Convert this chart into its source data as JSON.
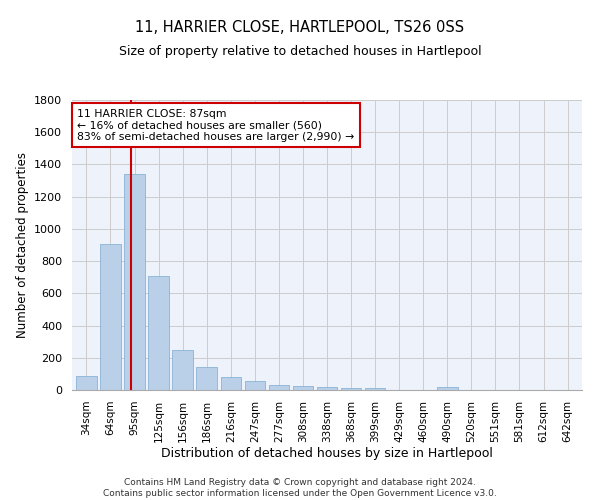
{
  "title": "11, HARRIER CLOSE, HARTLEPOOL, TS26 0SS",
  "subtitle": "Size of property relative to detached houses in Hartlepool",
  "xlabel": "Distribution of detached houses by size in Hartlepool",
  "ylabel": "Number of detached properties",
  "categories": [
    "34sqm",
    "64sqm",
    "95sqm",
    "125sqm",
    "156sqm",
    "186sqm",
    "216sqm",
    "247sqm",
    "277sqm",
    "308sqm",
    "338sqm",
    "368sqm",
    "399sqm",
    "429sqm",
    "460sqm",
    "490sqm",
    "520sqm",
    "551sqm",
    "581sqm",
    "612sqm",
    "642sqm"
  ],
  "values": [
    85,
    905,
    1340,
    705,
    250,
    140,
    80,
    55,
    30,
    25,
    20,
    15,
    10,
    0,
    0,
    20,
    0,
    0,
    0,
    0,
    0
  ],
  "bar_color": "#bad0e8",
  "bar_edge_color": "#7aaad0",
  "property_line_x": 1.87,
  "annotation_text_line1": "11 HARRIER CLOSE: 87sqm",
  "annotation_text_line2": "← 16% of detached houses are smaller (560)",
  "annotation_text_line3": "83% of semi-detached houses are larger (2,990) →",
  "ylim": [
    0,
    1800
  ],
  "yticks": [
    0,
    200,
    400,
    600,
    800,
    1000,
    1200,
    1400,
    1600,
    1800
  ],
  "red_line_color": "#cc0000",
  "annotation_box_color": "#ffffff",
  "annotation_box_edge": "#cc0000",
  "grid_color": "#cccccc",
  "bg_color": "#eef2fb",
  "footer_line1": "Contains HM Land Registry data © Crown copyright and database right 2024.",
  "footer_line2": "Contains public sector information licensed under the Open Government Licence v3.0."
}
